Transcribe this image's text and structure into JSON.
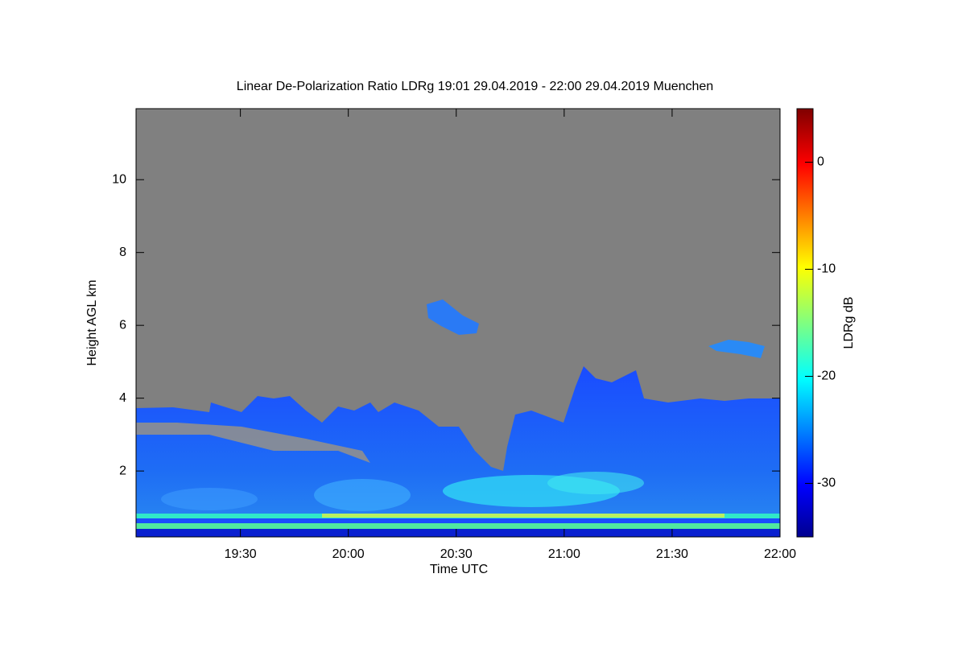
{
  "chart_data": {
    "type": "heatmap",
    "title": "Linear De-Polarization Ratio LDRg   19:01 29.04.2019 - 22:00 29.04.2019 Muenchen",
    "x_label": "Time UTC",
    "y_label": "Height AGL km",
    "colorbar_label": "LDRg dB",
    "xlim": [
      1141,
      1320
    ],
    "xticks": [
      {
        "value": 1170,
        "label": "19:30"
      },
      {
        "value": 1200,
        "label": "20:00"
      },
      {
        "value": 1230,
        "label": "20:30"
      },
      {
        "value": 1260,
        "label": "21:00"
      },
      {
        "value": 1290,
        "label": "21:30"
      },
      {
        "value": 1320,
        "label": "22:00"
      }
    ],
    "ylim": [
      0.19,
      11.95
    ],
    "yticks": [
      2,
      4,
      6,
      8,
      10
    ],
    "clim": [
      -35,
      5
    ],
    "cticks": [
      0,
      -10,
      -20,
      -30
    ]
  }
}
